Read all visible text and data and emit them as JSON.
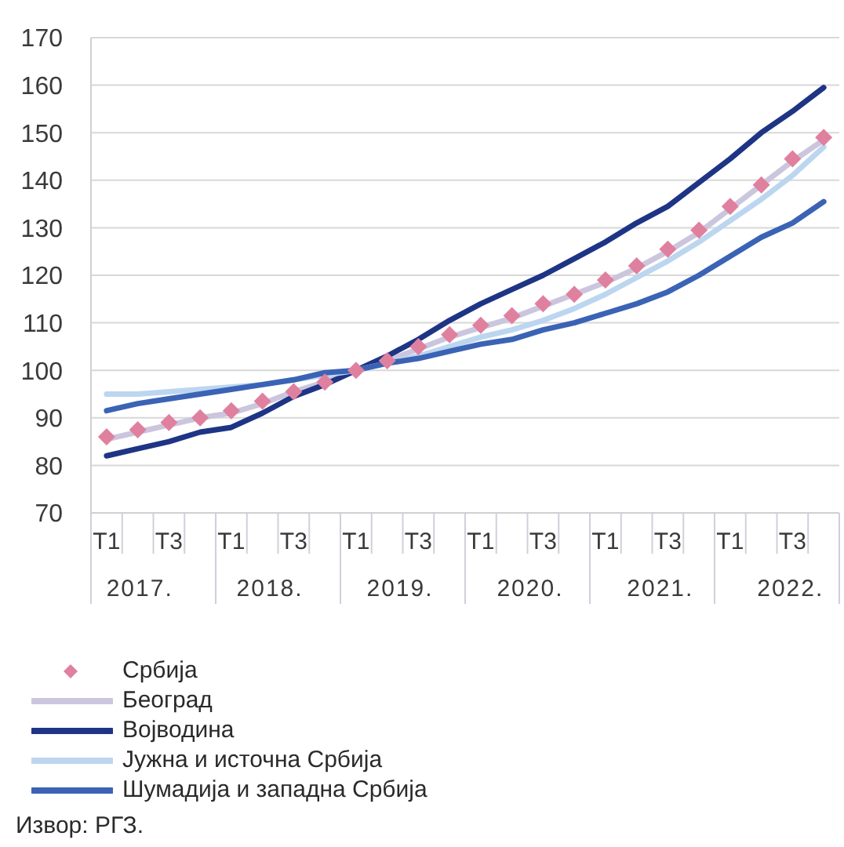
{
  "chart_data": {
    "type": "line",
    "categories": [
      "T1",
      null,
      "T3",
      null,
      "T1",
      null,
      "T3",
      null,
      "T1",
      null,
      "T3",
      null,
      "T1",
      null,
      "T3",
      null,
      "T1",
      null,
      "T3",
      null,
      "T1",
      null,
      "T3",
      null
    ],
    "ylim": [
      70,
      170
    ],
    "yticks": [
      70,
      80,
      90,
      100,
      110,
      120,
      130,
      140,
      150,
      160,
      170
    ],
    "grid": "y",
    "legend": "bottom",
    "annotations": [
      "2017.",
      "2018.",
      "2019.",
      "2020.",
      "2021.",
      "2022.",
      "Извор: РГЗ."
    ],
    "series": [
      {
        "name": "Србија",
        "type": "scatter",
        "marker": "diamond",
        "color": "#e0809f",
        "values": [
          86,
          87.5,
          89,
          90,
          91.5,
          93.5,
          95.5,
          97.5,
          100,
          102,
          105,
          107.5,
          109.5,
          111.5,
          114,
          116,
          119,
          122,
          125.5,
          129.5,
          134.5,
          139,
          144.5,
          149
        ]
      },
      {
        "name": "Београд",
        "color": "#cbc6de",
        "values": [
          85.5,
          87,
          88.5,
          90,
          91,
          93,
          95.5,
          97.5,
          100,
          102,
          104.5,
          107,
          109,
          111,
          113.5,
          116,
          118.5,
          121.5,
          125,
          129,
          134,
          139,
          144,
          148.5
        ]
      },
      {
        "name": "Војводина",
        "color": "#1e3485",
        "values": [
          82,
          83.5,
          85,
          87,
          88,
          91,
          94.5,
          97,
          100,
          103,
          106.5,
          110.5,
          114,
          117,
          120,
          123.5,
          127,
          131,
          134.5,
          139.5,
          144.5,
          150,
          154.5,
          159.5
        ]
      },
      {
        "name": "Јужна и источна Србија",
        "color": "#bcd6f0",
        "values": [
          95,
          95,
          95.5,
          96,
          96.5,
          97,
          98,
          99,
          100,
          101.5,
          103,
          105,
          107,
          108.5,
          110.5,
          113,
          116,
          119.5,
          123,
          127,
          131.5,
          136,
          141,
          147
        ]
      },
      {
        "name": "Шумадија и западна Србија",
        "color": "#3b63b5",
        "values": [
          91.5,
          93,
          94,
          95,
          96,
          97,
          98,
          99.5,
          100,
          101.5,
          102.5,
          104,
          105.5,
          106.5,
          108.5,
          110,
          112,
          114,
          116.5,
          120,
          124,
          128,
          131,
          135.5
        ]
      }
    ]
  }
}
